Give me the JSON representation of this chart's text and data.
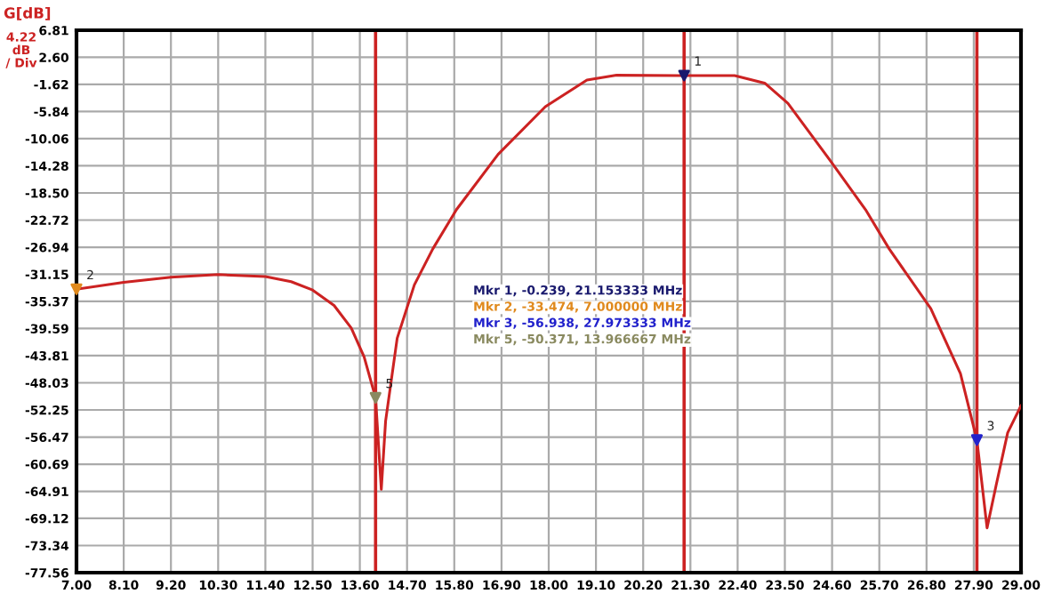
{
  "chart_data": {
    "type": "line",
    "ylabel": "G[dB]",
    "xlim": [
      7.0,
      29.0
    ],
    "xticks": [
      {
        "value": 7.0,
        "label": "7.00"
      },
      {
        "value": 8.1,
        "label": "8.10"
      },
      {
        "value": 9.2,
        "label": "9.20"
      },
      {
        "value": 10.3,
        "label": "10.30"
      },
      {
        "value": 11.4,
        "label": "11.40"
      },
      {
        "value": 12.5,
        "label": "12.50"
      },
      {
        "value": 13.6,
        "label": "13.60"
      },
      {
        "value": 14.7,
        "label": "14.70"
      },
      {
        "value": 15.8,
        "label": "15.80"
      },
      {
        "value": 16.9,
        "label": "16.90"
      },
      {
        "value": 18.0,
        "label": "18.00"
      },
      {
        "value": 19.1,
        "label": "19.10"
      },
      {
        "value": 20.2,
        "label": "20.20"
      },
      {
        "value": 21.3,
        "label": "21.30"
      },
      {
        "value": 22.4,
        "label": "22.40"
      },
      {
        "value": 23.5,
        "label": "23.50"
      },
      {
        "value": 24.6,
        "label": "24.60"
      },
      {
        "value": 25.7,
        "label": "25.70"
      },
      {
        "value": 26.8,
        "label": "26.80"
      },
      {
        "value": 27.9,
        "label": "27.90"
      },
      {
        "value": 29.0,
        "label": "29.00"
      }
    ],
    "ylim": [
      -77.56,
      6.81
    ],
    "yticks": [
      6.81,
      {
        "value": 2.6,
        "label": "2.60"
      },
      -1.62,
      -5.84,
      -10.06,
      -14.28,
      {
        "value": -18.5,
        "label": "-18.50"
      },
      -22.72,
      -26.94,
      -31.15,
      -35.37,
      -39.59,
      -43.81,
      -48.03,
      -52.25,
      -56.47,
      -60.69,
      -64.91,
      -69.12,
      -73.34,
      -77.56
    ],
    "grid": true,
    "series": [
      {
        "color": "#cc2222",
        "x": [
          7.0,
          8.1,
          9.2,
          10.3,
          11.4,
          12.0,
          12.5,
          13.0,
          13.4,
          13.7,
          13.966667,
          14.1,
          14.2,
          14.47,
          14.87,
          15.3,
          15.85,
          16.82,
          17.92,
          18.89,
          19.58,
          21.08,
          22.33,
          23.03,
          23.57,
          24.55,
          25.38,
          25.93,
          26.9,
          27.59,
          27.973333,
          28.21,
          28.42,
          28.69,
          29.0
        ],
        "values": [
          -33.474,
          -32.4,
          -31.6,
          -31.2,
          -31.5,
          -32.3,
          -33.6,
          -36.0,
          -39.5,
          -44.0,
          -50.371,
          -64.6,
          -54.0,
          -41.1,
          -32.8,
          -27.2,
          -21.1,
          -12.5,
          -5.09,
          -0.94,
          -0.19,
          -0.239,
          -0.24,
          -1.41,
          -4.54,
          -13.4,
          -21.1,
          -27.2,
          -36.5,
          -46.6,
          -56.938,
          -70.6,
          -64.0,
          -55.8,
          -51.6
        ]
      },
      {
        "type": "scatter",
        "marker": "triangle",
        "colors": [
          "#1a1a6e",
          "#e08a1e",
          "#2222cc",
          "#8a8a60"
        ],
        "x": [
          21.153333,
          7.0,
          27.973333,
          13.966667
        ],
        "values": [
          -0.239,
          -33.474,
          -56.938,
          -50.371
        ]
      }
    ],
    "ref_lines": [
      {
        "axis": "x",
        "value": 13.966667,
        "color": "#cc2222"
      },
      {
        "axis": "x",
        "value": 21.153333,
        "color": "#cc2222"
      },
      {
        "axis": "x",
        "value": 27.973333,
        "color": "#cc2222"
      }
    ],
    "annotations": [
      "4.22\ndB\n/ Div",
      "Mkr 1, -0.239, 21.153333 MHz",
      "Mkr 2, -33.474, 7.000000 MHz",
      "Mkr 3, -56.938, 27.973333 MHz",
      "Mkr 5, -50.371, 13.966667 MHz",
      {
        "text": "1",
        "x": 21.153333,
        "y": -0.239
      },
      {
        "text": "2",
        "x": 7.0,
        "y": -33.474
      },
      {
        "text": "3",
        "x": 27.973333,
        "y": -56.938
      },
      {
        "text": "5",
        "x": 13.966667,
        "y": -50.371
      }
    ]
  }
}
